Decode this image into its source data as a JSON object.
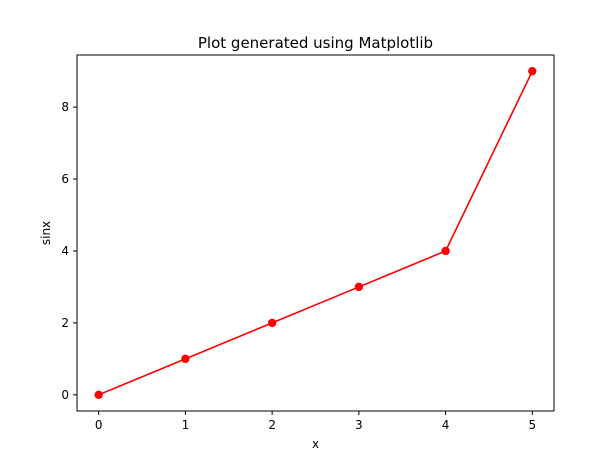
{
  "chart_data": {
    "type": "line",
    "title": "Plot generated using Matplotlib",
    "xlabel": "x",
    "ylabel": "sinx",
    "x": [
      0,
      1,
      2,
      3,
      4,
      5
    ],
    "series": [
      {
        "values": [
          0,
          1,
          2,
          3,
          4,
          9
        ],
        "color": "#ff0000",
        "marker": "circle"
      }
    ],
    "xlim": [
      -0.25,
      5.25
    ],
    "ylim": [
      -0.45,
      9.45
    ],
    "xticks": [
      0,
      1,
      2,
      3,
      4,
      5
    ],
    "yticks": [
      0,
      2,
      4,
      6,
      8
    ],
    "xtick_labels": [
      "0",
      "1",
      "2",
      "3",
      "4",
      "5"
    ],
    "ytick_labels": [
      "0",
      "2",
      "4",
      "6",
      "8"
    ],
    "grid": false,
    "legend": "none"
  }
}
